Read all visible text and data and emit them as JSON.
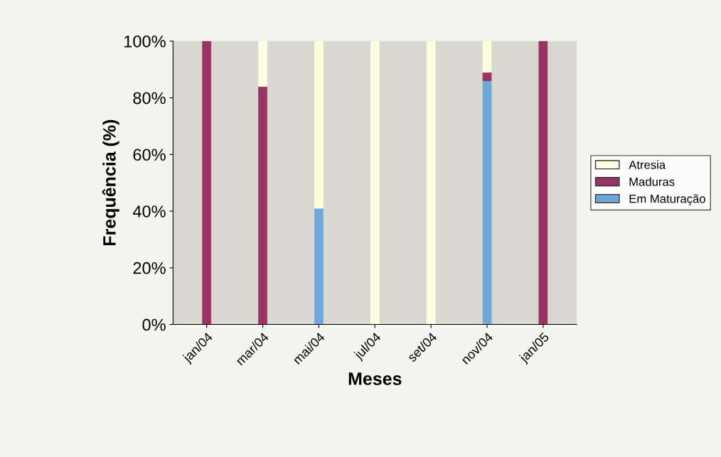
{
  "chart_data": {
    "type": "bar",
    "stacked": true,
    "xlabel": "Meses",
    "ylabel": "Frequência (%)",
    "categories": [
      "jan/04",
      "mar/04",
      "mai/04",
      "jul/04",
      "set/04",
      "nov/04",
      "jan/05"
    ],
    "series": [
      {
        "name": "Em Maturação",
        "color": "#6fa8d8",
        "values": [
          0,
          0,
          41,
          0,
          0,
          86,
          0
        ]
      },
      {
        "name": "Maduras",
        "color": "#993366",
        "values": [
          100,
          84,
          0,
          0,
          0,
          3,
          100
        ]
      },
      {
        "name": "Atresia",
        "color": "#fffde0",
        "values": [
          0,
          16,
          59,
          100,
          100,
          11,
          0
        ]
      }
    ],
    "ylim": [
      0,
      100
    ],
    "yticks": [
      {
        "value": 0,
        "label": "0%"
      },
      {
        "value": 20,
        "label": "20%"
      },
      {
        "value": 40,
        "label": "40%"
      },
      {
        "value": 60,
        "label": "60%"
      },
      {
        "value": 80,
        "label": "80%"
      },
      {
        "value": 100,
        "label": "100%"
      }
    ],
    "grid": false,
    "legend": "right"
  }
}
